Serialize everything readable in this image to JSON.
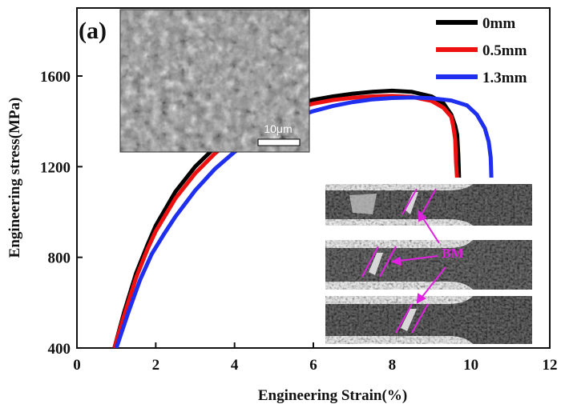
{
  "chart_data": {
    "type": "line",
    "panel_label": "(a)",
    "xlabel": "Engineering Strain(%)",
    "ylabel": "Engineering stress(MPa)",
    "xlim": [
      0,
      12
    ],
    "ylim": [
      400,
      1900
    ],
    "x_ticks": [
      "0",
      "2",
      "4",
      "6",
      "8",
      "10",
      "12"
    ],
    "y_ticks": [
      "400",
      "800",
      "1200",
      "1600"
    ],
    "legend_position": "top-right",
    "series": [
      {
        "name": "0mm",
        "color": "#000000",
        "x": [
          0.95,
          1.2,
          1.5,
          1.8,
          2.0,
          2.5,
          3.0,
          3.5,
          4.0,
          4.5,
          5.0,
          5.5,
          6.0,
          6.5,
          7.0,
          7.5,
          8.0,
          8.5,
          9.0,
          9.3,
          9.5,
          9.6,
          9.65,
          9.68,
          9.7
        ],
        "y": [
          400,
          560,
          730,
          860,
          940,
          1090,
          1200,
          1285,
          1350,
          1400,
          1440,
          1470,
          1495,
          1510,
          1522,
          1530,
          1535,
          1530,
          1510,
          1480,
          1430,
          1380,
          1340,
          1250,
          1140
        ]
      },
      {
        "name": "0.5mm",
        "color": "#ee1111",
        "x": [
          0.95,
          1.2,
          1.5,
          1.8,
          2.0,
          2.5,
          3.0,
          3.5,
          4.0,
          4.5,
          5.0,
          5.5,
          6.0,
          6.5,
          7.0,
          7.5,
          8.0,
          8.5,
          9.0,
          9.3,
          9.5,
          9.55,
          9.6,
          9.62,
          9.65
        ],
        "y": [
          400,
          545,
          710,
          840,
          915,
          1060,
          1170,
          1258,
          1328,
          1382,
          1425,
          1456,
          1478,
          1494,
          1504,
          1510,
          1512,
          1508,
          1490,
          1460,
          1420,
          1380,
          1320,
          1220,
          1140
        ]
      },
      {
        "name": "1.3mm",
        "color": "#1f2ff0",
        "x": [
          1.0,
          1.3,
          1.6,
          1.9,
          2.2,
          2.5,
          3.0,
          3.5,
          4.0,
          4.5,
          5.0,
          5.5,
          6.0,
          6.5,
          7.0,
          7.5,
          8.0,
          8.5,
          9.0,
          9.5,
          9.9,
          10.15,
          10.35,
          10.45,
          10.5,
          10.52
        ],
        "y": [
          400,
          555,
          700,
          815,
          900,
          980,
          1095,
          1190,
          1265,
          1325,
          1375,
          1415,
          1445,
          1468,
          1485,
          1497,
          1503,
          1505,
          1502,
          1492,
          1470,
          1430,
          1370,
          1310,
          1240,
          1140
        ]
      }
    ],
    "inset_scale_bar": "10μm",
    "inset_annotation": "BM"
  }
}
